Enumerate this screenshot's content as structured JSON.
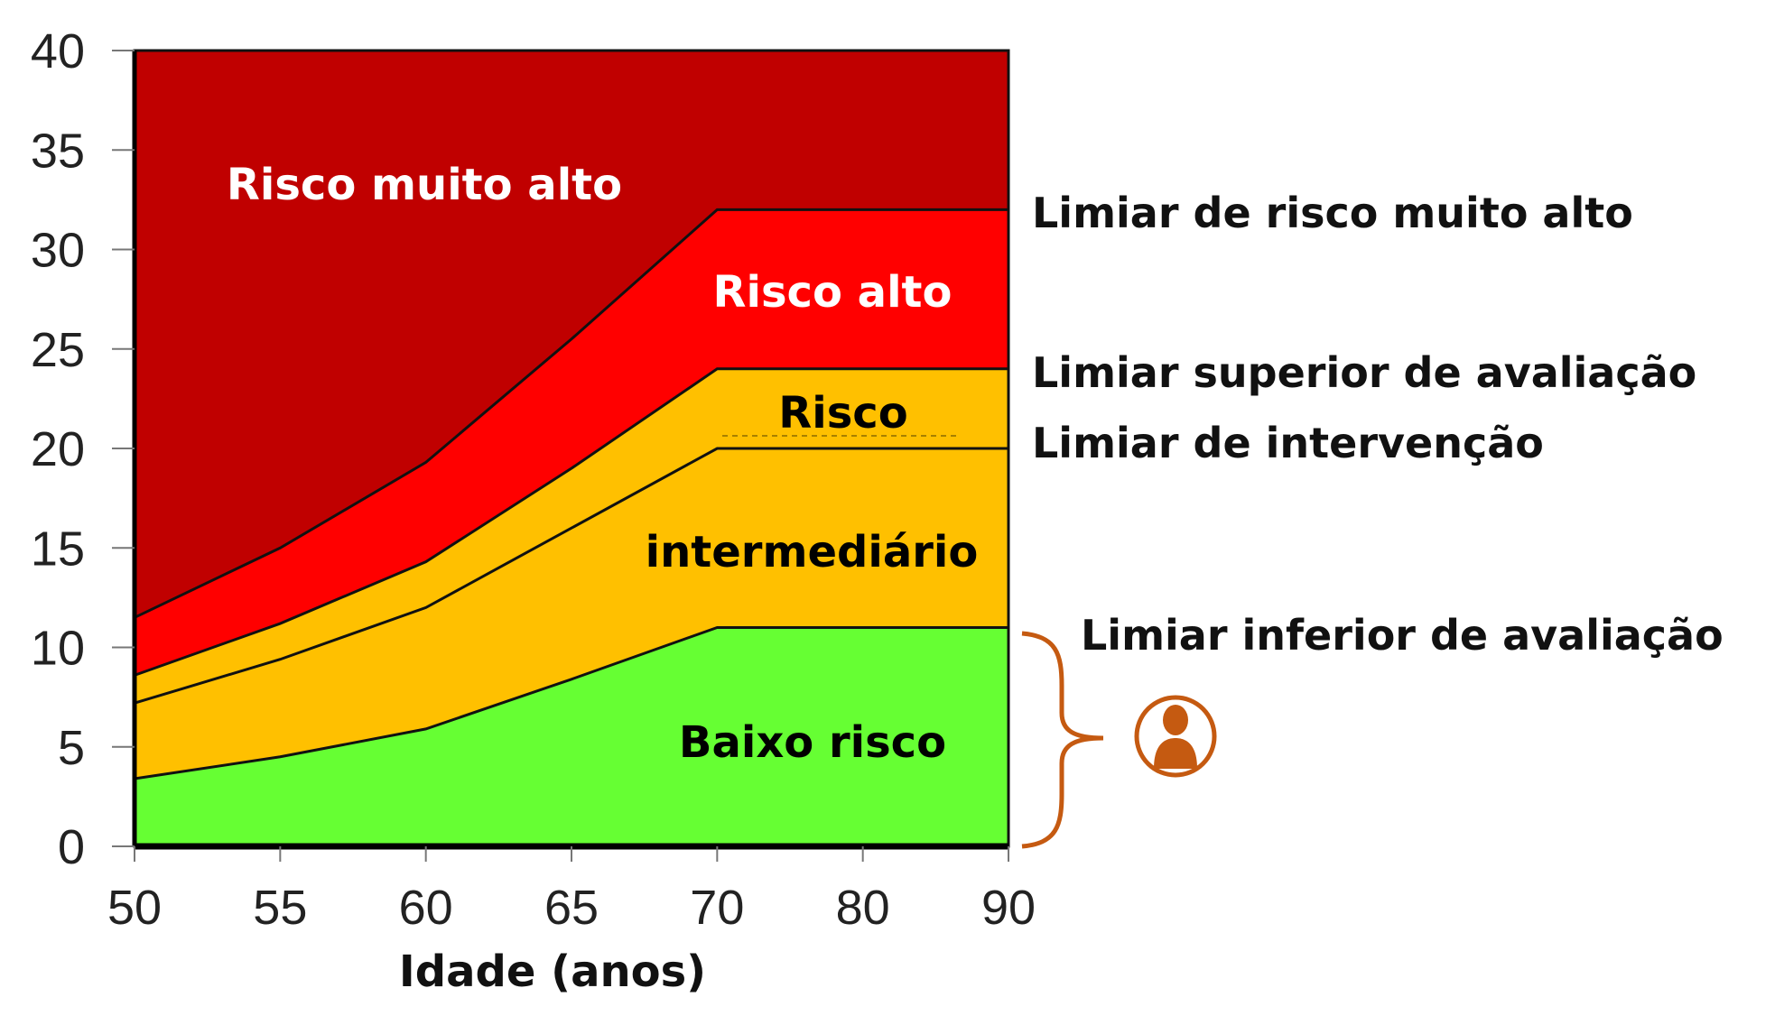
{
  "chart_data": {
    "type": "area",
    "title": "",
    "xlabel": "Idade (anos)",
    "ylabel": "",
    "x": [
      "50",
      "55",
      "60",
      "65",
      "70",
      "80",
      "90"
    ],
    "ylim": [
      0,
      40
    ],
    "yticks": [
      "0",
      "5",
      "10",
      "15",
      "20",
      "25",
      "30",
      "35",
      "40"
    ],
    "grid": false,
    "series": [
      {
        "name": "Limiar inferior de avaliação",
        "values": [
          3.4,
          4.5,
          5.9,
          8.4,
          11,
          11,
          11
        ]
      },
      {
        "name": "Limiar de intervenção",
        "values": [
          7.2,
          9.4,
          12,
          16,
          20,
          20,
          20
        ]
      },
      {
        "name": "Limiar superior de avaliação",
        "values": [
          8.6,
          11.2,
          14.3,
          19,
          24,
          24,
          24
        ]
      },
      {
        "name": "Limiar de risco muito alto",
        "values": [
          11.5,
          15,
          19.3,
          25.5,
          32,
          32,
          32
        ]
      }
    ],
    "bands": [
      {
        "label": "Baixo risco",
        "color": "#66ff33",
        "text_color": "#000000"
      },
      {
        "label": "Risco intermediário",
        "color": "#ffc000",
        "text_color": "#000000"
      },
      {
        "label": "Risco intermediário",
        "color": "#ffc000",
        "text_color": "#000000"
      },
      {
        "label": "Risco alto",
        "color": "#ff0000",
        "text_color": "#ffffff"
      },
      {
        "label": "Risco muito alto",
        "color": "#c00000",
        "text_color": "#ffffff"
      }
    ],
    "band_labels": {
      "very_high": "Risco muito alto",
      "high": "Risco alto",
      "intermediate_1": "Risco",
      "intermediate_2": "intermediário",
      "low": "Baixo risco"
    },
    "annotations": {
      "very_high_threshold": "Limiar de risco muito alto",
      "upper_assessment": "Limiar superior de avaliação",
      "intervention": "Limiar de intervenção",
      "lower_assessment": "Limiar inferior de avaliação"
    },
    "accent_color": "#c55a11",
    "icons": [
      "curly-brace-icon",
      "person-icon"
    ]
  }
}
